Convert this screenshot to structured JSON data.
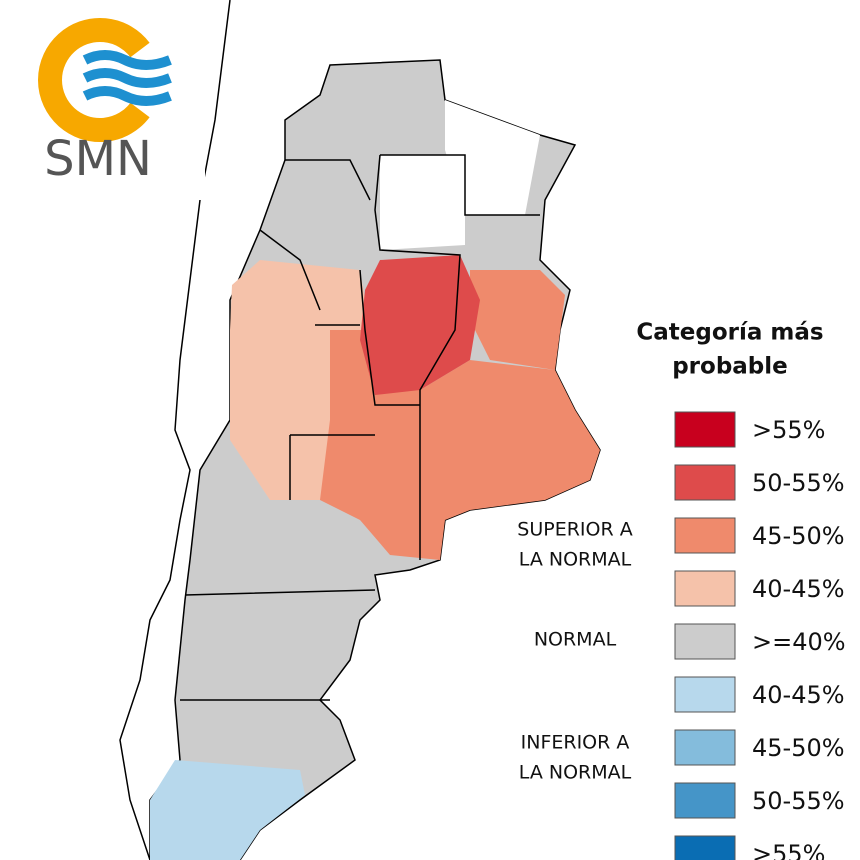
{
  "logo": {
    "text": "SMN"
  },
  "legend": {
    "title_lines": [
      "Categoría más",
      "probable"
    ],
    "groups": [
      {
        "lines": [
          "SUPERIOR A",
          "LA NORMAL"
        ]
      },
      {
        "lines": [
          "NORMAL"
        ]
      },
      {
        "lines": [
          "INFERIOR A",
          "LA NORMAL"
        ]
      }
    ],
    "items": [
      {
        "label": ">55%",
        "color": "#c8001e"
      },
      {
        "label": "50-55%",
        "color": "#de4b4b"
      },
      {
        "label": "45-50%",
        "color": "#ef8a6c"
      },
      {
        "label": "40-45%",
        "color": "#f5c2aa"
      },
      {
        "label": ">=40%",
        "color": "#cccccc"
      },
      {
        "label": "40-45%",
        "color": "#b7d8ec"
      },
      {
        "label": "45-50%",
        "color": "#84bcdc"
      },
      {
        "label": "50-55%",
        "color": "#4595c8"
      },
      {
        "label": ">55%",
        "color": "#0a6db3"
      }
    ]
  }
}
